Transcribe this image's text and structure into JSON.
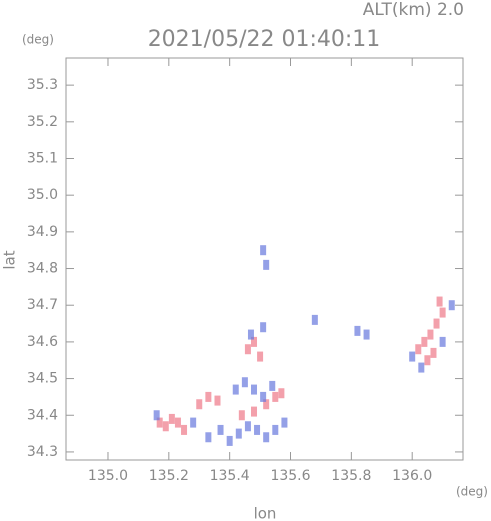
{
  "chart_data": {
    "type": "scatter",
    "subtitle": "ALT(km) 2.0",
    "title": "2021/05/22 01:40:11",
    "y_unit": "(deg)",
    "x_unit": "(deg)",
    "x_label": "lon",
    "y_label": "lat",
    "xlim": [
      134.862,
      136.167
    ],
    "ylim": [
      34.278,
      35.374
    ],
    "xticks": [
      {
        "value": 135.0,
        "label": "135.0"
      },
      135.2,
      135.4,
      135.6,
      135.8,
      {
        "value": 136.0,
        "label": "136.0"
      }
    ],
    "yticks": [
      34.3,
      34.4,
      34.5,
      34.6,
      34.7,
      34.8,
      34.9,
      {
        "value": 35.0,
        "label": "35.0"
      },
      35.1,
      35.2,
      35.3
    ],
    "series": [
      {
        "color": "#ee7788",
        "x": [
          135.17,
          135.19,
          135.21,
          135.23,
          135.25,
          135.3,
          135.33,
          135.36,
          135.44,
          135.48,
          135.52,
          135.55,
          135.57,
          135.46,
          135.48,
          135.5,
          136.02,
          136.04,
          136.06,
          136.08,
          136.1,
          136.09,
          136.05,
          136.07
        ],
        "y": [
          34.38,
          34.37,
          34.39,
          34.38,
          34.36,
          34.43,
          34.45,
          34.44,
          34.4,
          34.41,
          34.43,
          34.45,
          34.46,
          34.58,
          34.6,
          34.56,
          34.58,
          34.6,
          34.62,
          34.65,
          34.68,
          34.71,
          34.55,
          34.57
        ]
      },
      {
        "color": "#6677dd",
        "x": [
          135.16,
          135.28,
          135.33,
          135.37,
          135.4,
          135.43,
          135.46,
          135.49,
          135.52,
          135.55,
          135.58,
          135.42,
          135.45,
          135.48,
          135.51,
          135.54,
          135.47,
          135.51,
          135.52,
          135.51,
          135.68,
          135.82,
          135.85,
          136.0,
          136.03,
          136.13,
          136.1
        ],
        "y": [
          34.4,
          34.38,
          34.34,
          34.36,
          34.33,
          34.35,
          34.37,
          34.36,
          34.34,
          34.36,
          34.38,
          34.47,
          34.49,
          34.47,
          34.45,
          34.48,
          34.62,
          34.64,
          34.81,
          34.85,
          34.66,
          34.63,
          34.62,
          34.56,
          34.53,
          34.7,
          34.6
        ]
      }
    ]
  }
}
